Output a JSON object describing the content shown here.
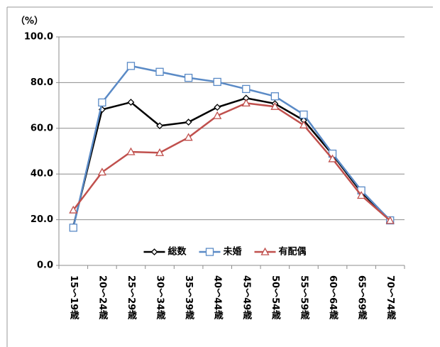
{
  "chart_data": {
    "type": "line",
    "y_label": "（%）",
    "categories": [
      "15～19歳",
      "20～24歳",
      "25～29歳",
      "30～34歳",
      "35～39歳",
      "40～44歳",
      "45～49歳",
      "50～54歳",
      "55～59歳",
      "60～64歳",
      "65～69歳",
      "70～74歳"
    ],
    "series": [
      {
        "name": "総数",
        "color": "#000000",
        "marker": "diamond",
        "values": [
          17.0,
          68.2,
          71.4,
          61.1,
          62.7,
          69.2,
          73.2,
          70.8,
          63.5,
          48.5,
          32.0,
          19.8
        ]
      },
      {
        "name": "未婚",
        "color": "#5a8ac6",
        "marker": "square",
        "values": [
          16.5,
          71.3,
          87.3,
          84.7,
          82.1,
          80.3,
          77.2,
          74.0,
          66.0,
          48.9,
          32.8,
          19.7
        ]
      },
      {
        "name": "有配偶",
        "color": "#c0504d",
        "marker": "triangle",
        "values": [
          24.2,
          40.8,
          49.7,
          49.3,
          56.0,
          65.5,
          71.0,
          69.5,
          61.4,
          46.6,
          30.6,
          19.6
        ]
      }
    ],
    "ylim": [
      0,
      100
    ],
    "yticks": [
      {
        "value": 0,
        "label": "0.0"
      },
      {
        "value": 20,
        "label": "20.0"
      },
      {
        "value": 40,
        "label": "40.0"
      },
      {
        "value": 60,
        "label": "60.0"
      },
      {
        "value": 80,
        "label": "80.0"
      },
      {
        "value": 100,
        "label": "100.0"
      }
    ],
    "grid": true,
    "legend": "bottom"
  }
}
